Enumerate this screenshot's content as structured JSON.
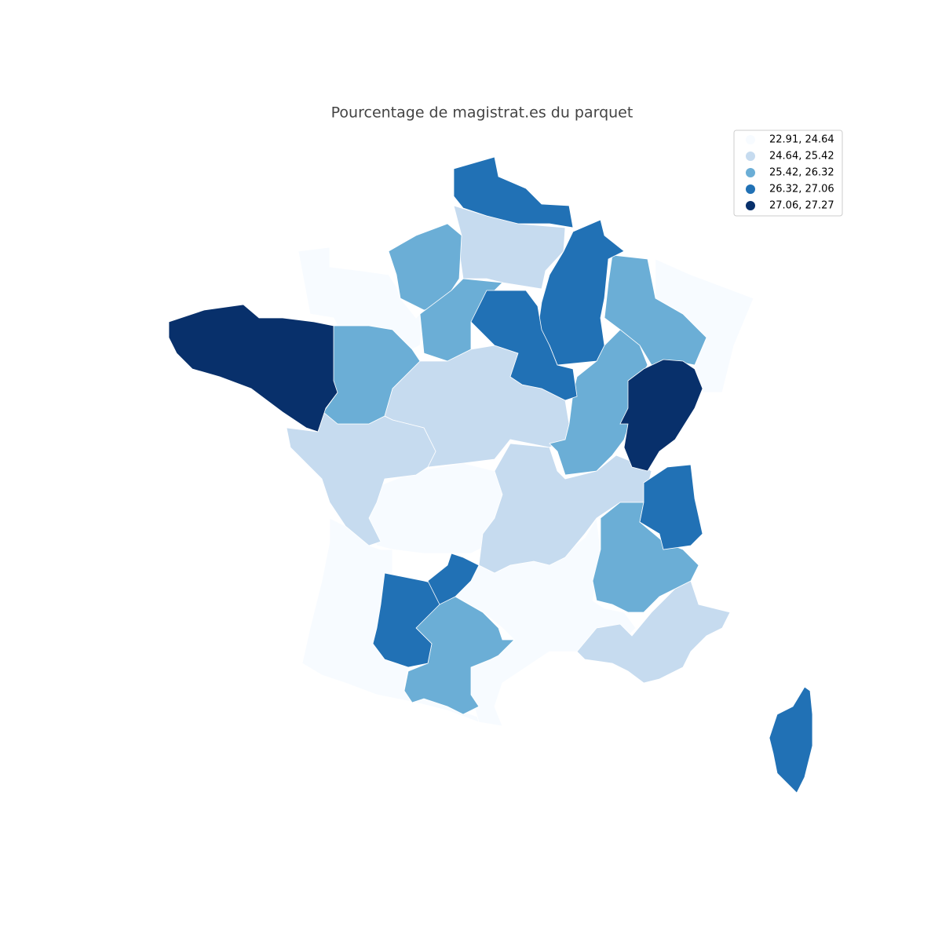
{
  "title": "Pourcentage de magistrat.es du parquet",
  "legend": {
    "items": [
      {
        "label": "22.91, 24.64",
        "color": "#f7fbff"
      },
      {
        "label": "24.64, 25.42",
        "color": "#c6dbef"
      },
      {
        "label": "25.42, 26.32",
        "color": "#6baed6"
      },
      {
        "label": "26.32, 27.06",
        "color": "#2171b5"
      },
      {
        "label": "27.06, 27.27",
        "color": "#08306b"
      }
    ]
  }
}
